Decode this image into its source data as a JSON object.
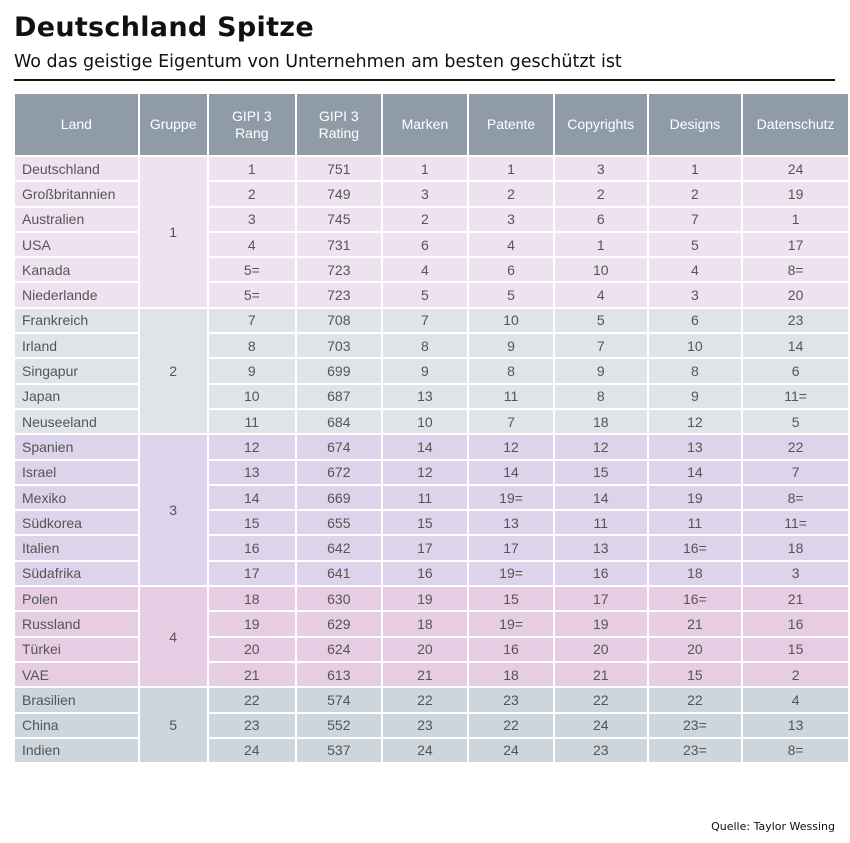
{
  "title": "Deutschland Spitze",
  "subtitle": "Wo das geistige Eigentum von Unternehmen am besten geschützt ist",
  "source": "Quelle: Taylor Wessing",
  "colors": {
    "header": "#8f9ca8",
    "group_1": "#efe2f0",
    "group_2": "#e0e4e8",
    "group_3": "#dcd4ea",
    "group_4": "#e6cde3",
    "group_5": "#cdd5dd"
  },
  "chart_data": {
    "type": "table",
    "columns": [
      "Land",
      "Gruppe",
      "GIPI 3 Rang",
      "GIPI 3 Rating",
      "Marken",
      "Patente",
      "Copyrights",
      "Designs",
      "Datenschutz"
    ],
    "groups": [
      {
        "gruppe": "1",
        "rows": [
          [
            "Deutschland",
            "1",
            "751",
            "1",
            "1",
            "3",
            "1",
            "24"
          ],
          [
            "Großbritannien",
            "2",
            "749",
            "3",
            "2",
            "2",
            "2",
            "19"
          ],
          [
            "Australien",
            "3",
            "745",
            "2",
            "3",
            "6",
            "7",
            "1"
          ],
          [
            "USA",
            "4",
            "731",
            "6",
            "4",
            "1",
            "5",
            "17"
          ],
          [
            "Kanada",
            "5=",
            "723",
            "4",
            "6",
            "10",
            "4",
            "8="
          ],
          [
            "Niederlande",
            "5=",
            "723",
            "5",
            "5",
            "4",
            "3",
            "20"
          ]
        ]
      },
      {
        "gruppe": "2",
        "rows": [
          [
            "Frankreich",
            "7",
            "708",
            "7",
            "10",
            "5",
            "6",
            "23"
          ],
          [
            "Irland",
            "8",
            "703",
            "8",
            "9",
            "7",
            "10",
            "14"
          ],
          [
            "Singapur",
            "9",
            "699",
            "9",
            "8",
            "9",
            "8",
            "6"
          ],
          [
            "Japan",
            "10",
            "687",
            "13",
            "11",
            "8",
            "9",
            "11="
          ],
          [
            "Neuseeland",
            "11",
            "684",
            "10",
            "7",
            "18",
            "12",
            "5"
          ]
        ]
      },
      {
        "gruppe": "3",
        "rows": [
          [
            "Spanien",
            "12",
            "674",
            "14",
            "12",
            "12",
            "13",
            "22"
          ],
          [
            "Israel",
            "13",
            "672",
            "12",
            "14",
            "15",
            "14",
            "7"
          ],
          [
            "Mexiko",
            "14",
            "669",
            "11",
            "19=",
            "14",
            "19",
            "8="
          ],
          [
            "Südkorea",
            "15",
            "655",
            "15",
            "13",
            "11",
            "11",
            "11="
          ],
          [
            "Italien",
            "16",
            "642",
            "17",
            "17",
            "13",
            "16=",
            "18"
          ],
          [
            "Südafrika",
            "17",
            "641",
            "16",
            "19=",
            "16",
            "18",
            "3"
          ]
        ]
      },
      {
        "gruppe": "4",
        "rows": [
          [
            "Polen",
            "18",
            "630",
            "19",
            "15",
            "17",
            "16=",
            "21"
          ],
          [
            "Russland",
            "19",
            "629",
            "18",
            "19=",
            "19",
            "21",
            "16"
          ],
          [
            "Türkei",
            "20",
            "624",
            "20",
            "16",
            "20",
            "20",
            "15"
          ],
          [
            "VAE",
            "21",
            "613",
            "21",
            "18",
            "21",
            "15",
            "2"
          ]
        ]
      },
      {
        "gruppe": "5",
        "rows": [
          [
            "Brasilien",
            "22",
            "574",
            "22",
            "23",
            "22",
            "22",
            "4"
          ],
          [
            "China",
            "23",
            "552",
            "23",
            "22",
            "24",
            "23=",
            "13"
          ],
          [
            "Indien",
            "24",
            "537",
            "24",
            "24",
            "23",
            "23=",
            "8="
          ]
        ]
      }
    ]
  }
}
